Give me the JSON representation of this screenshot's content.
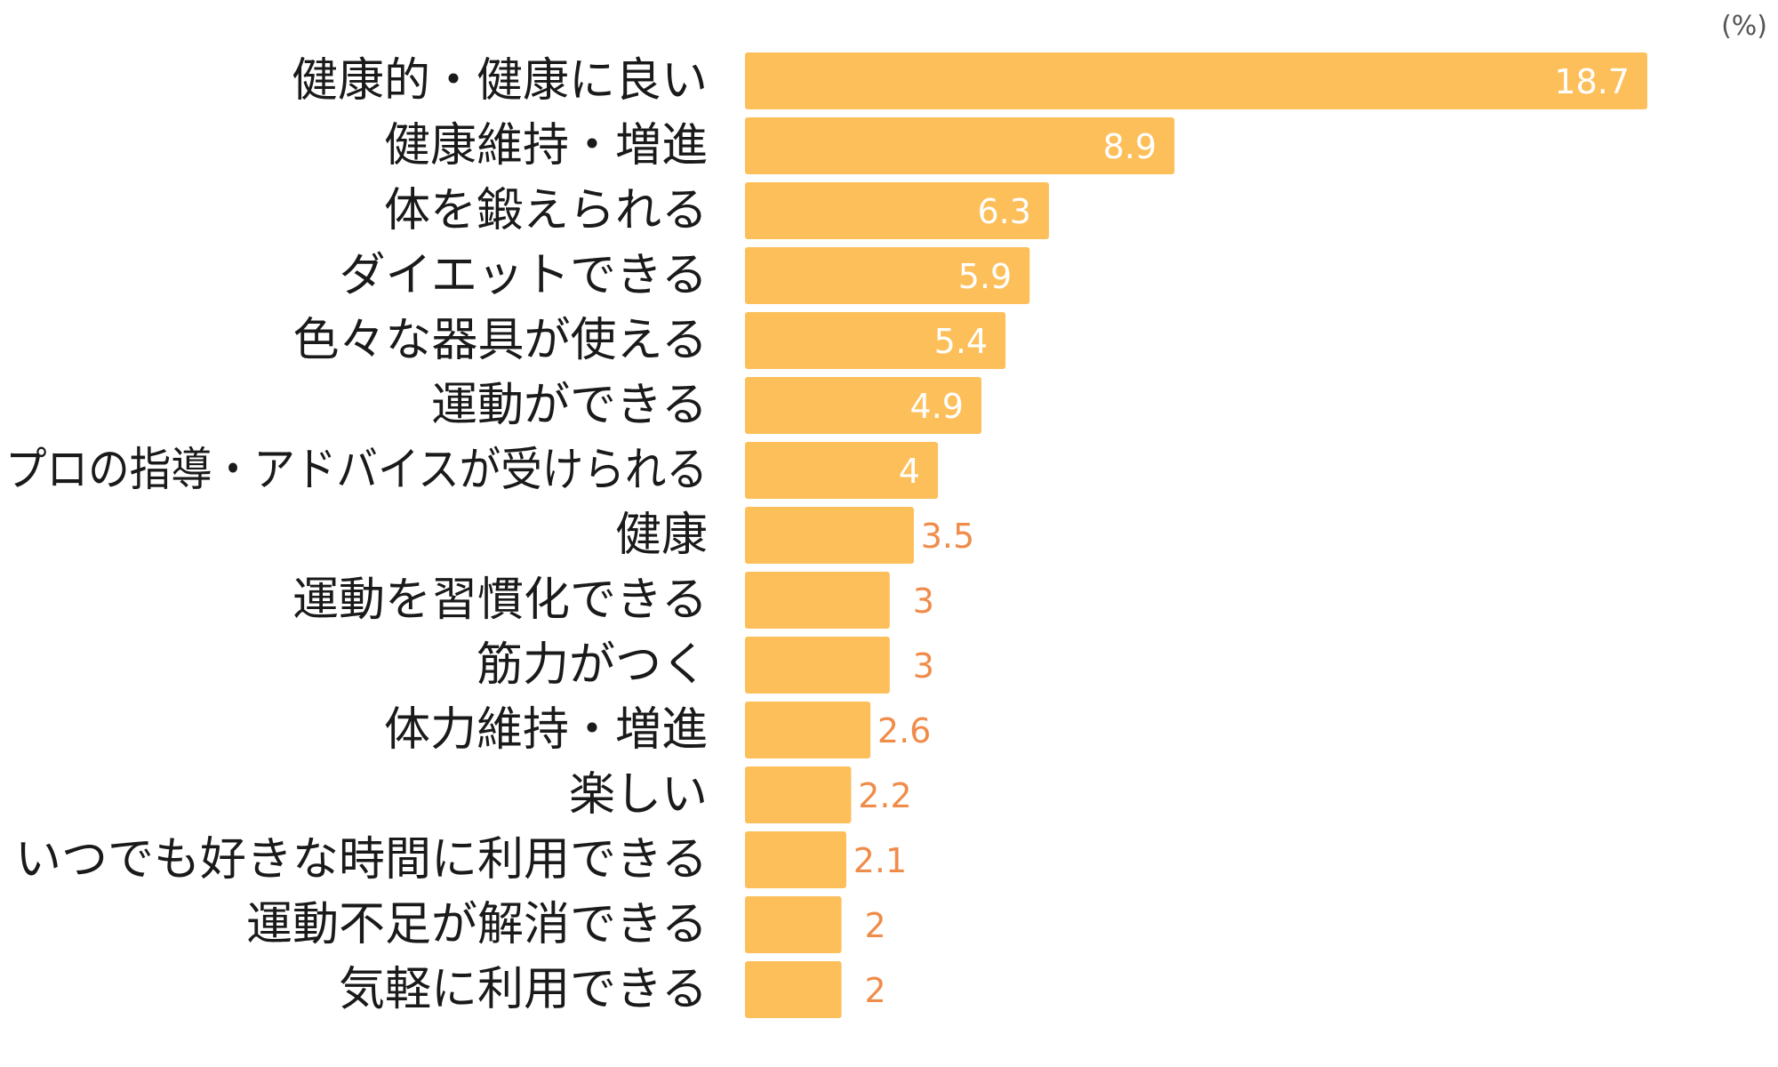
{
  "unit": "(%)",
  "colors": {
    "bar": "#FDBF5A",
    "value_outside": "#F08C4A",
    "value_inside": "#ffffff",
    "category_text": "#1a1a1a"
  },
  "chart_data": {
    "type": "bar",
    "orientation": "horizontal",
    "title": "",
    "xlabel": "",
    "ylabel": "",
    "unit": "(%)",
    "xlim": [
      0,
      18.7
    ],
    "grid": false,
    "legend": "none",
    "categories": [
      "健康的・健康に良い",
      "健康維持・増進",
      "体を鍛えられる",
      "ダイエットできる",
      "色々な器具が使える",
      "運動ができる",
      "プロの指導・アドバイスが受けられる",
      "健康",
      "運動を習慣化できる",
      "筋力がつく",
      "体力維持・増進",
      "楽しい",
      "いつでも好きな時間に利用できる",
      "運動不足が解消できる",
      "気軽に利用できる"
    ],
    "values": [
      18.7,
      8.9,
      6.3,
      5.9,
      5.4,
      4.9,
      4,
      3.5,
      3,
      3,
      2.6,
      2.2,
      2.1,
      2,
      2
    ],
    "value_labels": [
      "18.7",
      "8.9",
      "6.3",
      "5.9",
      "5.4",
      "4.9",
      "4",
      "3.5",
      "3",
      "3",
      "2.6",
      "2.2",
      "2.1",
      "2",
      "2"
    ]
  }
}
